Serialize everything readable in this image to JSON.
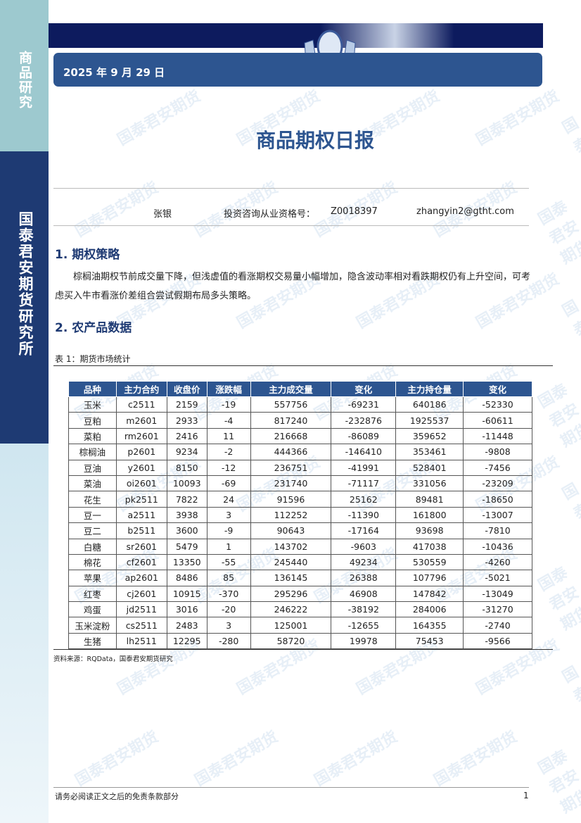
{
  "sidebar": {
    "top_label": "商品研究",
    "main_label": "国泰君安期货研究所"
  },
  "header": {
    "date": "2025 年 9 月 29 日"
  },
  "title": "商品期权日报",
  "author": {
    "name": "张银",
    "license_label": "投资咨询从业资格号：",
    "license": "Z0018397",
    "email": "zhangyin2@gtht.com"
  },
  "sections": [
    {
      "heading": "1.  期权策略",
      "body": "棕榈油期权节前成交量下降，但浅虚值的看涨期权交易量小幅增加，隐含波动率相对看跌期权仍有上升空间，可考虑买入牛市看涨价差组合尝试假期布局多头策略。"
    },
    {
      "heading": "2.  农产品数据"
    }
  ],
  "table": {
    "caption": "表 1：期货市场统计",
    "headers": [
      "品种",
      "主力合约",
      "收盘价",
      "涨跌幅",
      "主力成交量",
      "变化",
      "主力持仓量",
      "变化"
    ],
    "rows": [
      [
        "玉米",
        "c2511",
        "2159",
        "-19",
        "557756",
        "-69231",
        "640186",
        "-52330"
      ],
      [
        "豆粕",
        "m2601",
        "2933",
        "-4",
        "817240",
        "-232876",
        "1925537",
        "-60611"
      ],
      [
        "菜粕",
        "rm2601",
        "2416",
        "11",
        "216668",
        "-86089",
        "359652",
        "-11448"
      ],
      [
        "棕榈油",
        "p2601",
        "9234",
        "-2",
        "444366",
        "-146410",
        "353461",
        "-9808"
      ],
      [
        "豆油",
        "y2601",
        "8150",
        "-12",
        "236751",
        "-41991",
        "528401",
        "-7456"
      ],
      [
        "菜油",
        "oi2601",
        "10093",
        "-69",
        "231740",
        "-71117",
        "331056",
        "-23209"
      ],
      [
        "花生",
        "pk2511",
        "7822",
        "24",
        "91596",
        "25162",
        "89481",
        "-18650"
      ],
      [
        "豆一",
        "a2511",
        "3938",
        "3",
        "112252",
        "-11390",
        "161800",
        "-13007"
      ],
      [
        "豆二",
        "b2511",
        "3600",
        "-9",
        "90643",
        "-17164",
        "93698",
        "-7810"
      ],
      [
        "白糖",
        "sr2601",
        "5479",
        "1",
        "143702",
        "-9603",
        "417038",
        "-10436"
      ],
      [
        "棉花",
        "cf2601",
        "13350",
        "-55",
        "245440",
        "49234",
        "530559",
        "-4260"
      ],
      [
        "苹果",
        "ap2601",
        "8486",
        "85",
        "136145",
        "26388",
        "107796",
        "-5021"
      ],
      [
        "红枣",
        "cj2601",
        "10915",
        "-370",
        "295296",
        "46908",
        "147842",
        "-13049"
      ],
      [
        "鸡蛋",
        "jd2511",
        "3016",
        "-20",
        "246222",
        "-38192",
        "284006",
        "-31270"
      ],
      [
        "玉米淀粉",
        "cs2511",
        "2483",
        "3",
        "125001",
        "-12655",
        "164355",
        "-2740"
      ],
      [
        "生猪",
        "lh2511",
        "12295",
        "-280",
        "58720",
        "19978",
        "75453",
        "-9566"
      ]
    ],
    "source": "资料来源：RQData，国泰君安期货研究"
  },
  "footer": {
    "disclaimer": "请务必阅读正文之后的免责条款部分",
    "page": "1"
  },
  "watermark": "国泰君安期货",
  "colors": {
    "navy": "#1e3a73",
    "accent": "#2d5590",
    "teal": "#9dc9cf"
  }
}
